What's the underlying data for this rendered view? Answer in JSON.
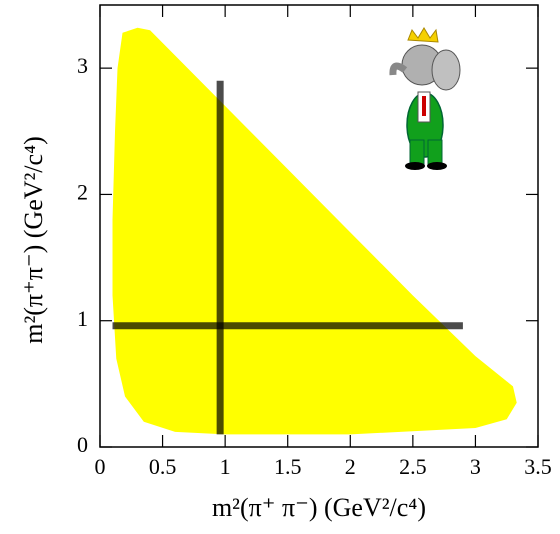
{
  "chart_data": {
    "type": "dalitz",
    "x_label": "m²(π⁺ π⁻) (GeV²/c⁴)",
    "y_label": "m²(π⁺π⁻) (GeV²/c⁴)",
    "xlim": [
      0,
      3.5
    ],
    "ylim": [
      0,
      3.5
    ],
    "xticks": [
      0,
      0.5,
      1,
      1.5,
      2,
      2.5,
      3,
      3.5
    ],
    "yticks": [
      0,
      1,
      2,
      3
    ],
    "region": {
      "color": "#ffff00",
      "x": [
        0.3,
        0.18,
        0.14,
        0.12,
        0.1,
        0.1,
        0.13,
        0.2,
        0.35,
        0.6,
        1.0,
        2.0,
        3.0,
        3.25,
        3.33,
        3.3,
        3.0,
        2.5,
        2.0,
        1.5,
        1.0,
        0.6,
        0.4
      ],
      "y": [
        3.32,
        3.28,
        3.0,
        2.5,
        1.8,
        1.2,
        0.7,
        0.4,
        0.2,
        0.12,
        0.1,
        0.1,
        0.15,
        0.22,
        0.35,
        0.48,
        0.72,
        1.2,
        1.7,
        2.2,
        2.7,
        3.1,
        3.3
      ]
    },
    "bands": [
      {
        "x": [
          0.96,
          0.96
        ],
        "y": [
          0.1,
          2.9
        ]
      },
      {
        "x": [
          0.1,
          2.9
        ],
        "y": [
          0.96,
          0.96
        ]
      }
    ]
  }
}
